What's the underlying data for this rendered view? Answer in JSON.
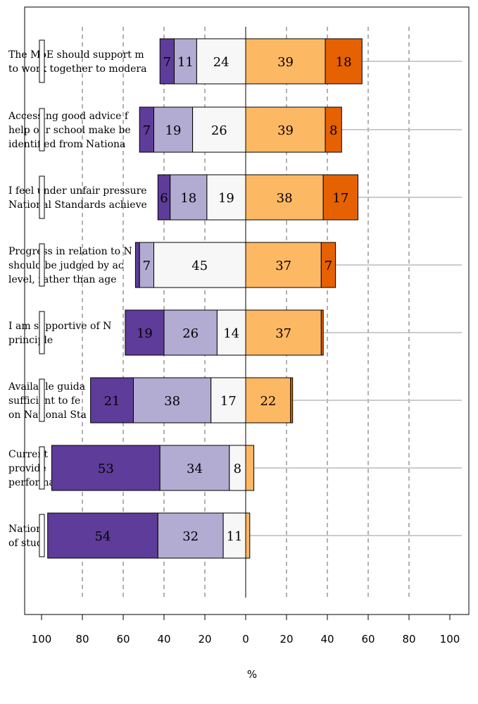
{
  "chart_data": {
    "type": "bar",
    "orientation": "horizontal",
    "stacked": "diverging",
    "xlabel": "%",
    "x_ticks": [
      "100",
      "80",
      "60",
      "40",
      "20",
      "0",
      "20",
      "40",
      "60",
      "80",
      "100"
    ],
    "xlim": [
      -100,
      100
    ],
    "grid": "dashed vertical",
    "segment_colors": [
      "#5e3c99",
      "#b2abd2",
      "#f7f7f7",
      "#fdb863",
      "#e66101"
    ],
    "categories": [
      [
        "The MoE should support m",
        "to work together to modera"
      ],
      [
        "Accessing good advice f",
        "help our school make be",
        "identified from Nationa"
      ],
      [
        "I feel under unfair pressure",
        "National Standards achieve"
      ],
      [
        "Progress in relation to N",
        "should be judged by ac",
        "level, rather than age"
      ],
      [
        "I am supportive of N",
        "principle"
      ],
      [
        "Available guida",
        "sufficient to fe",
        "on National Sta"
      ],
      [
        "Current",
        "provide",
        "performance"
      ],
      [
        "Nation",
        "of stud"
      ]
    ],
    "series": [
      {
        "values": [
          7,
          7,
          6,
          2,
          19,
          21,
          53,
          54
        ]
      },
      {
        "values": [
          11,
          19,
          18,
          7,
          26,
          38,
          34,
          32
        ]
      },
      {
        "values": [
          24,
          26,
          19,
          45,
          14,
          17,
          8,
          11
        ]
      },
      {
        "values": [
          39,
          39,
          38,
          37,
          37,
          22,
          4,
          2
        ]
      },
      {
        "values": [
          18,
          8,
          17,
          7,
          1,
          1,
          0,
          0
        ]
      }
    ],
    "labels": [
      [
        "7",
        "11",
        "24",
        "39",
        "18"
      ],
      [
        "7",
        "19",
        "26",
        "39",
        "8"
      ],
      [
        "6",
        "18",
        "19",
        "38",
        "17"
      ],
      [
        "",
        "7",
        "45",
        "37",
        "7"
      ],
      [
        "19",
        "26",
        "14",
        "37",
        ""
      ],
      [
        "21",
        "38",
        "17",
        "22",
        ""
      ],
      [
        "53",
        "34",
        "8",
        "",
        ""
      ],
      [
        "54",
        "32",
        "11",
        "",
        ""
      ]
    ]
  }
}
